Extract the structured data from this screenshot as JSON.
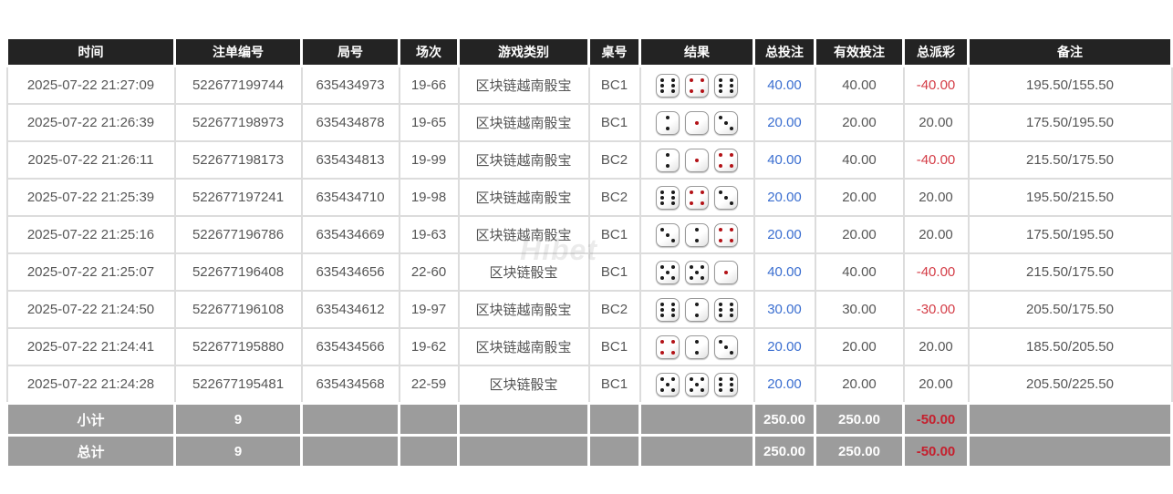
{
  "watermark": "Hibet",
  "colors": {
    "header_bg": "#232323",
    "totals_bg": "#9c9c9c",
    "link_blue": "#3a6ed0",
    "negative_red": "#d43d47",
    "totals_negative_red": "#c51f2d",
    "grid_line": "#dcdcdc",
    "red_pip": "#b31217"
  },
  "table": {
    "headers": {
      "time": "时间",
      "bet_id": "注单编号",
      "round": "局号",
      "session": "场次",
      "game": "游戏类别",
      "table_no": "桌号",
      "result": "结果",
      "total_bet": "总投注",
      "valid_bet": "有效投注",
      "payout": "总派彩",
      "remark": "备注"
    },
    "rows": [
      {
        "time": "2025-07-22 21:27:09",
        "bet_id": "522677199744",
        "round": "635434973",
        "session": "19-66",
        "game": "区块链越南骰宝",
        "table_no": "BC1",
        "dice": [
          6,
          4,
          6
        ],
        "total_bet": "40.00",
        "valid_bet": "40.00",
        "payout": "-40.00",
        "remark": "195.50/155.50"
      },
      {
        "time": "2025-07-22 21:26:39",
        "bet_id": "522677198973",
        "round": "635434878",
        "session": "19-65",
        "game": "区块链越南骰宝",
        "table_no": "BC1",
        "dice": [
          2,
          1,
          3
        ],
        "total_bet": "20.00",
        "valid_bet": "20.00",
        "payout": "20.00",
        "remark": "175.50/195.50"
      },
      {
        "time": "2025-07-22 21:26:11",
        "bet_id": "522677198173",
        "round": "635434813",
        "session": "19-99",
        "game": "区块链越南骰宝",
        "table_no": "BC2",
        "dice": [
          2,
          1,
          4
        ],
        "total_bet": "40.00",
        "valid_bet": "40.00",
        "payout": "-40.00",
        "remark": "215.50/175.50"
      },
      {
        "time": "2025-07-22 21:25:39",
        "bet_id": "522677197241",
        "round": "635434710",
        "session": "19-98",
        "game": "区块链越南骰宝",
        "table_no": "BC2",
        "dice": [
          6,
          4,
          3
        ],
        "total_bet": "20.00",
        "valid_bet": "20.00",
        "payout": "20.00",
        "remark": "195.50/215.50"
      },
      {
        "time": "2025-07-22 21:25:16",
        "bet_id": "522677196786",
        "round": "635434669",
        "session": "19-63",
        "game": "区块链越南骰宝",
        "table_no": "BC1",
        "dice": [
          3,
          2,
          4
        ],
        "total_bet": "20.00",
        "valid_bet": "20.00",
        "payout": "20.00",
        "remark": "175.50/195.50"
      },
      {
        "time": "2025-07-22 21:25:07",
        "bet_id": "522677196408",
        "round": "635434656",
        "session": "22-60",
        "game": "区块链骰宝",
        "table_no": "BC1",
        "dice": [
          5,
          5,
          1
        ],
        "total_bet": "40.00",
        "valid_bet": "40.00",
        "payout": "-40.00",
        "remark": "215.50/175.50"
      },
      {
        "time": "2025-07-22 21:24:50",
        "bet_id": "522677196108",
        "round": "635434612",
        "session": "19-97",
        "game": "区块链越南骰宝",
        "table_no": "BC2",
        "dice": [
          6,
          2,
          6
        ],
        "total_bet": "30.00",
        "valid_bet": "30.00",
        "payout": "-30.00",
        "remark": "205.50/175.50"
      },
      {
        "time": "2025-07-22 21:24:41",
        "bet_id": "522677195880",
        "round": "635434566",
        "session": "19-62",
        "game": "区块链越南骰宝",
        "table_no": "BC1",
        "dice": [
          4,
          2,
          3
        ],
        "total_bet": "20.00",
        "valid_bet": "20.00",
        "payout": "20.00",
        "remark": "185.50/205.50"
      },
      {
        "time": "2025-07-22 21:24:28",
        "bet_id": "522677195481",
        "round": "635434568",
        "session": "22-59",
        "game": "区块链骰宝",
        "table_no": "BC1",
        "dice": [
          5,
          5,
          6
        ],
        "total_bet": "20.00",
        "valid_bet": "20.00",
        "payout": "20.00",
        "remark": "205.50/225.50"
      }
    ],
    "subtotal": {
      "label": "小计",
      "count": "9",
      "total_bet": "250.00",
      "valid_bet": "250.00",
      "payout": "-50.00"
    },
    "total": {
      "label": "总计",
      "count": "9",
      "total_bet": "250.00",
      "valid_bet": "250.00",
      "payout": "-50.00"
    }
  }
}
